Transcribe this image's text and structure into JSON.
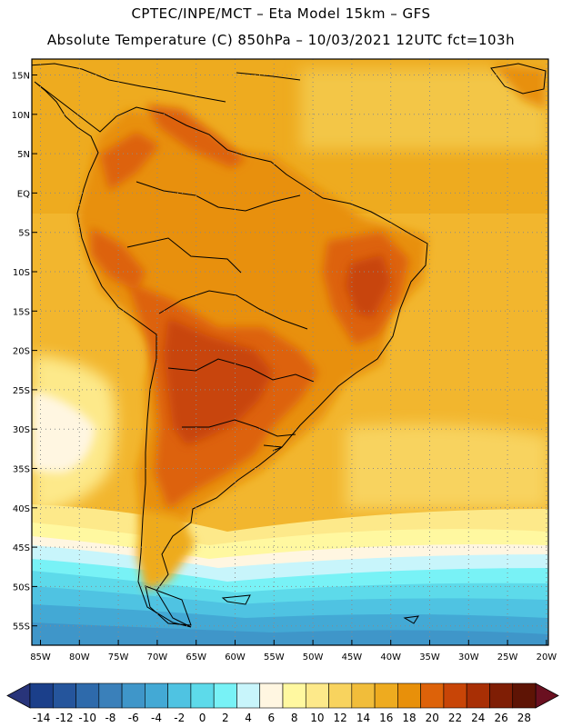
{
  "title_line1": "CPTEC/INPE/MCT –  Eta Model 15km – GFS",
  "title_line2": "Absolute Temperature (C) 850hPa – 10/03/2021 12UTC fct=103h",
  "lat_labels": [
    "15N",
    "10N",
    "5N",
    "EQ",
    "5S",
    "10S",
    "15S",
    "20S",
    "25S",
    "30S",
    "35S",
    "40S",
    "45S",
    "50S",
    "55S"
  ],
  "lon_labels": [
    "85W",
    "80W",
    "75W",
    "70W",
    "65W",
    "60W",
    "55W",
    "50W",
    "45W",
    "40W",
    "35W",
    "30W",
    "25W",
    "20W"
  ],
  "colorbar": {
    "labels": [
      "-14",
      "-12",
      "-10",
      "-8",
      "-6",
      "-4",
      "-2",
      "0",
      "2",
      "4",
      "6",
      "8",
      "10",
      "12",
      "14",
      "16",
      "18",
      "20",
      "22",
      "24",
      "26",
      "28"
    ],
    "colors": [
      "#1b3f8a",
      "#25559c",
      "#2e6aab",
      "#3a80ba",
      "#3f96c9",
      "#43a9d5",
      "#4fc3e2",
      "#5ddaea",
      "#78f2f6",
      "#c8f5fb",
      "#fff6e1",
      "#fff8a0",
      "#fde98a",
      "#f8d35e",
      "#f1bd3a",
      "#eeab1f",
      "#e8900a",
      "#dd6209",
      "#c84507",
      "#a82f05",
      "#7f1e05",
      "#5e1405"
    ],
    "low_color": "#28347a",
    "high_color": "#6a1020"
  },
  "colors": {
    "ocean_warm": "#f3c542",
    "land_hot": "#c5520a",
    "coast_line": "#000000",
    "grid_dots": "#8a8a8a"
  }
}
